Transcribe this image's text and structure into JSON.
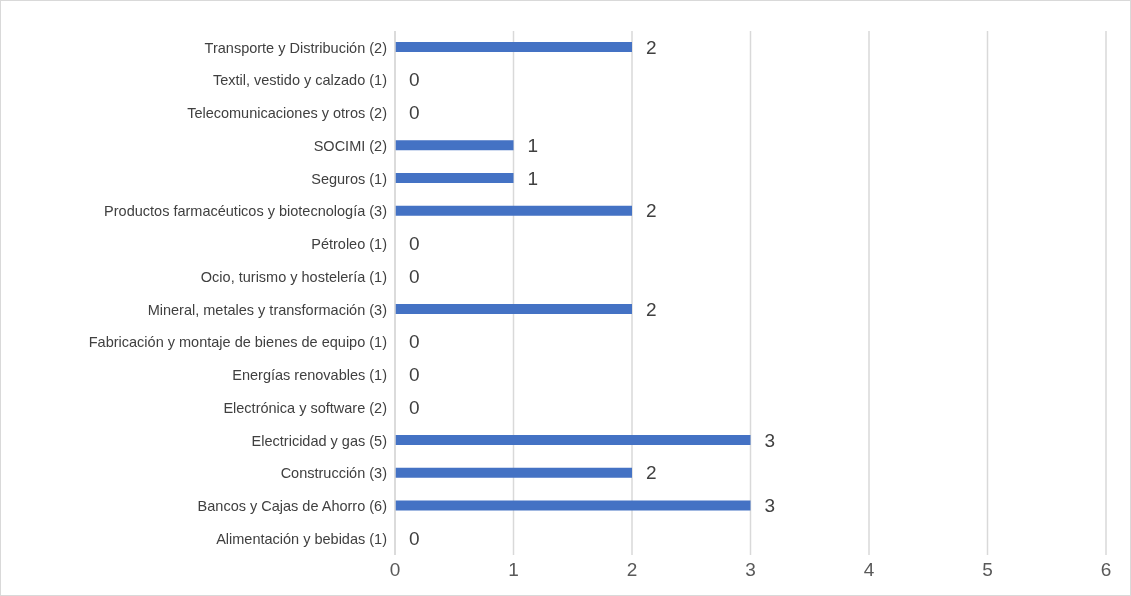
{
  "chart_data": {
    "type": "bar",
    "orientation": "horizontal",
    "categories": [
      "Transporte y Distribución (2)",
      "Textil, vestido y calzado (1)",
      "Telecomunicaciones y otros (2)",
      "SOCIMI (2)",
      "Seguros (1)",
      "Productos farmacéuticos y biotecnología (3)",
      "Pétroleo (1)",
      "Ocio, turismo y hostelería (1)",
      "Mineral, metales y transformación (3)",
      "Fabricación y montaje de bienes de equipo (1)",
      "Energías renovables (1)",
      "Electrónica y software (2)",
      "Electricidad y gas (5)",
      "Construcción (3)",
      "Bancos y Cajas de Ahorro (6)",
      "Alimentación y bebidas (1)"
    ],
    "values": [
      2,
      0,
      0,
      1,
      1,
      2,
      0,
      0,
      2,
      0,
      0,
      0,
      3,
      2,
      3,
      0
    ],
    "color": "#4472c4",
    "xlim": [
      0,
      6
    ],
    "xticks": [
      0,
      1,
      2,
      3,
      4,
      5,
      6
    ],
    "grid": "x",
    "data_labels": true
  }
}
